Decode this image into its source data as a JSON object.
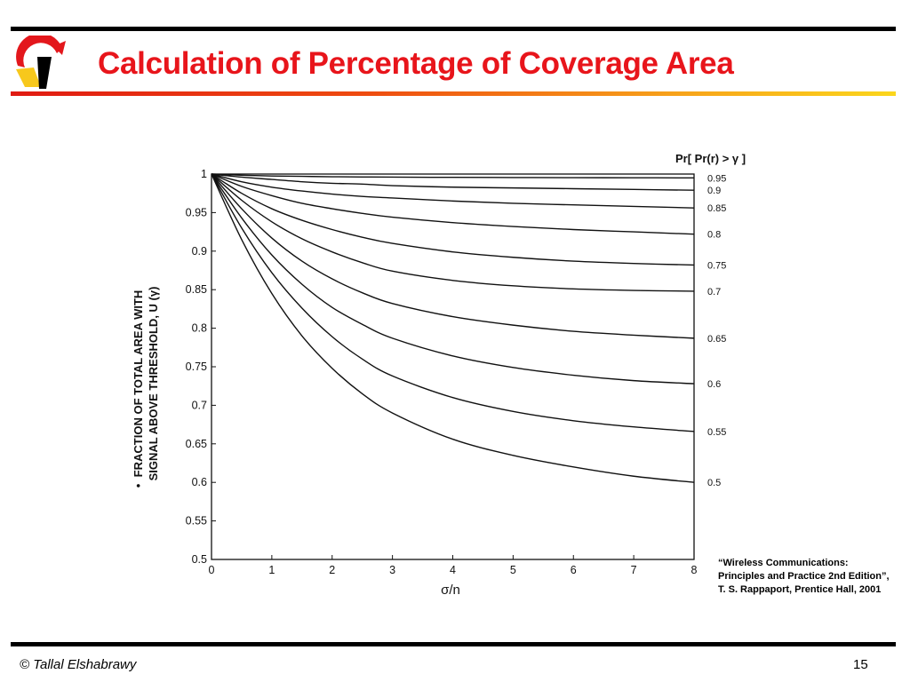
{
  "slide": {
    "title": "Calculation of Percentage of Coverage Area",
    "citation": "“Wireless Communications: Principles and Practice 2nd Edition”, T. S. Rappaport, Prentice Hall, 2001",
    "footer_author": "© Tallal Elshabrawy",
    "page_number": "15",
    "colors": {
      "title": "#e8151b",
      "logo_red": "#e3171c",
      "logo_yellow": "#f7c81c",
      "logo_black": "#000000"
    },
    "logo_icon": "university-logo-icon"
  },
  "chart_data": {
    "type": "line",
    "xlabel": "σ/n",
    "ylabel_line1": "FRACTION OF TOTAL AREA WITH",
    "ylabel_line2": "SIGNAL ABOVE THRESHOLD, U (γ)",
    "ylabel_bullet": "•",
    "legend_title": "Pr[ Pr(r) > γ ]",
    "xlim": [
      0,
      8
    ],
    "ylim": [
      0.5,
      1
    ],
    "x_ticks": [
      "0",
      "1",
      "2",
      "3",
      "4",
      "5",
      "6",
      "7",
      "8"
    ],
    "y_ticks": [
      "0.5",
      "0.55",
      "0.6",
      "0.65",
      "0.7",
      "0.75",
      "0.8",
      "0.85",
      "0.9",
      "0.95",
      "1"
    ],
    "grid": false,
    "legend_placement": "right",
    "x": [
      0,
      0.5,
      1,
      1.5,
      2,
      2.5,
      3,
      4,
      5,
      6,
      7,
      8
    ],
    "series": [
      {
        "name": "0.95",
        "values": [
          1,
          0.9985,
          0.9975,
          0.997,
          0.9965,
          0.9962,
          0.996,
          0.9957,
          0.9955,
          0.9953,
          0.9952,
          0.995
        ]
      },
      {
        "name": "0.9",
        "values": [
          1,
          0.996,
          0.993,
          0.99,
          0.988,
          0.987,
          0.985,
          0.983,
          0.982,
          0.981,
          0.98,
          0.979
        ]
      },
      {
        "name": "0.85",
        "values": [
          1,
          0.99,
          0.983,
          0.978,
          0.974,
          0.971,
          0.969,
          0.965,
          0.962,
          0.96,
          0.958,
          0.956
        ]
      },
      {
        "name": "0.8",
        "values": [
          1,
          0.984,
          0.972,
          0.962,
          0.955,
          0.949,
          0.944,
          0.937,
          0.932,
          0.928,
          0.925,
          0.922
        ]
      },
      {
        "name": "0.75",
        "values": [
          1,
          0.975,
          0.955,
          0.94,
          0.928,
          0.918,
          0.91,
          0.899,
          0.892,
          0.887,
          0.884,
          0.882
        ]
      },
      {
        "name": "0.7",
        "values": [
          1,
          0.966,
          0.938,
          0.916,
          0.899,
          0.885,
          0.874,
          0.862,
          0.855,
          0.851,
          0.849,
          0.848
        ]
      },
      {
        "name": "0.65",
        "values": [
          1,
          0.955,
          0.917,
          0.887,
          0.864,
          0.846,
          0.832,
          0.815,
          0.804,
          0.796,
          0.791,
          0.787
        ]
      },
      {
        "name": "0.6",
        "values": [
          1,
          0.943,
          0.895,
          0.857,
          0.827,
          0.805,
          0.787,
          0.764,
          0.749,
          0.739,
          0.732,
          0.728
        ]
      },
      {
        "name": "0.55",
        "values": [
          1,
          0.93,
          0.872,
          0.826,
          0.789,
          0.76,
          0.738,
          0.71,
          0.692,
          0.68,
          0.672,
          0.666
        ]
      },
      {
        "name": "0.5",
        "values": [
          1,
          0.915,
          0.845,
          0.79,
          0.748,
          0.715,
          0.69,
          0.656,
          0.635,
          0.62,
          0.608,
          0.6
        ]
      }
    ]
  }
}
